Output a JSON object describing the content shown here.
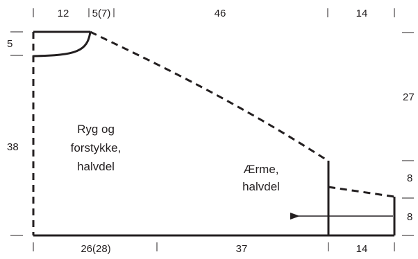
{
  "diagram": {
    "top_measurements": {
      "m1": "12",
      "m2": "5(7)",
      "m3": "46",
      "m4": "14"
    },
    "bottom_measurements": {
      "m1": "26(28)",
      "m2": "37",
      "m3": "14"
    },
    "left_measurements": {
      "neck_depth": "5",
      "body_height": "38"
    },
    "right_measurements": {
      "upper": "27",
      "middle": "8",
      "lower": "8"
    },
    "body_label": {
      "line1": "Ryg og",
      "line2": "forstykke,",
      "line3": "halvdel"
    },
    "sleeve_label": {
      "line1": "Ærme,",
      "line2": "halvdel"
    },
    "arrow_direction": "left"
  }
}
